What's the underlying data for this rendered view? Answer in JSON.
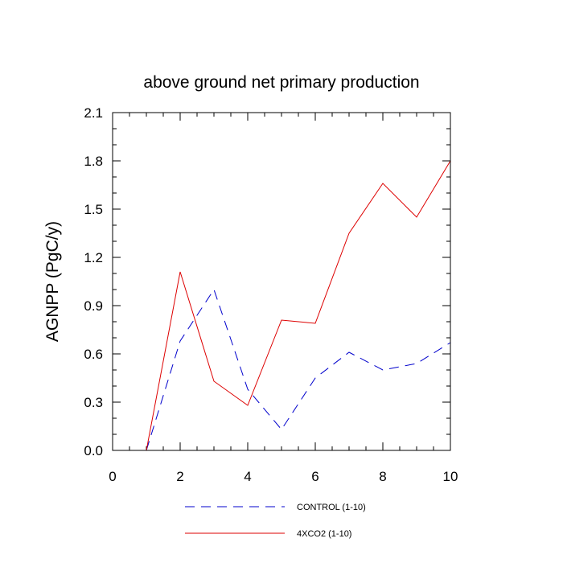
{
  "chart_data": {
    "type": "line",
    "title": "above ground net primary production",
    "xlabel": "",
    "ylabel": "AGNPP  (PgC/y)",
    "xlim": [
      0,
      10
    ],
    "ylim": [
      0,
      2.1
    ],
    "xticks": [
      0,
      2,
      4,
      6,
      8,
      10
    ],
    "xtick_labels": [
      "0",
      "2",
      "4",
      "6",
      "8",
      "10"
    ],
    "yticks": [
      0,
      0.3,
      0.6,
      0.9,
      1.2,
      1.5,
      1.8,
      2.1
    ],
    "ytick_labels": [
      "0.0",
      "0.3",
      "0.6",
      "0.9",
      "1.2",
      "1.5",
      "1.8",
      "2.1"
    ],
    "legend_position": "bottom",
    "series": [
      {
        "name": "CONTROL (1-10)",
        "color": "#0000cc",
        "style": "dashed",
        "x": [
          1,
          2,
          3,
          4,
          5,
          6,
          7,
          8,
          9,
          10
        ],
        "values": [
          0.0,
          0.68,
          1.0,
          0.38,
          0.13,
          0.45,
          0.61,
          0.5,
          0.54,
          0.67
        ]
      },
      {
        "name": "4XCO2 (1-10)",
        "color": "#dd0000",
        "style": "solid",
        "x": [
          1,
          2,
          3,
          4,
          5,
          6,
          7,
          8,
          9,
          10
        ],
        "values": [
          0.0,
          1.11,
          0.43,
          0.28,
          0.81,
          0.79,
          1.35,
          1.66,
          1.45,
          1.8
        ]
      }
    ]
  }
}
